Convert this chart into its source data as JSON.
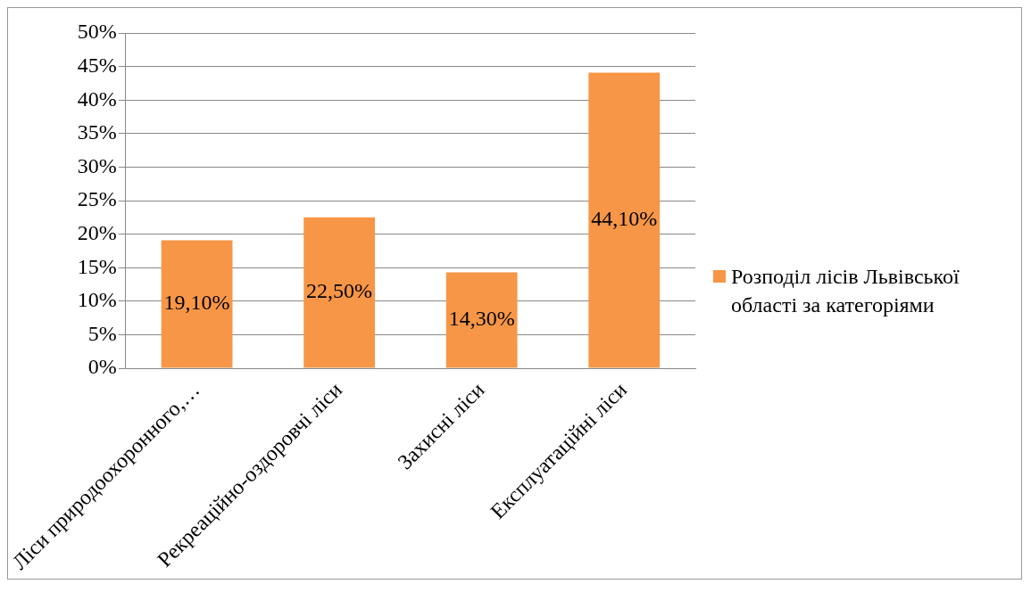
{
  "chart_data": {
    "type": "bar",
    "categories": [
      "Ліси природоохоронного,…",
      "Рекреаційно-оздоровчі ліси",
      "Захисні ліси",
      "Експлуатаційні ліси"
    ],
    "series": [
      {
        "name": "Розподіл лісів Львівської області за категоріями",
        "color": "#f79646",
        "values": [
          19.1,
          22.5,
          14.3,
          44.1
        ],
        "value_labels": [
          "19,10%",
          "22,50%",
          "14,30%",
          "44,10%"
        ]
      }
    ],
    "ylim": [
      0,
      50
    ],
    "yticks": [
      {
        "value": 0,
        "label": "0%"
      },
      {
        "value": 5,
        "label": "5%"
      },
      {
        "value": 10,
        "label": "10%"
      },
      {
        "value": 15,
        "label": "15%"
      },
      {
        "value": 20,
        "label": "20%"
      },
      {
        "value": 25,
        "label": "25%"
      },
      {
        "value": 30,
        "label": "30%"
      },
      {
        "value": 35,
        "label": "35%"
      },
      {
        "value": 40,
        "label": "40%"
      },
      {
        "value": 45,
        "label": "45%"
      },
      {
        "value": 50,
        "label": "50%"
      }
    ],
    "grid": "y",
    "legend": "right"
  }
}
